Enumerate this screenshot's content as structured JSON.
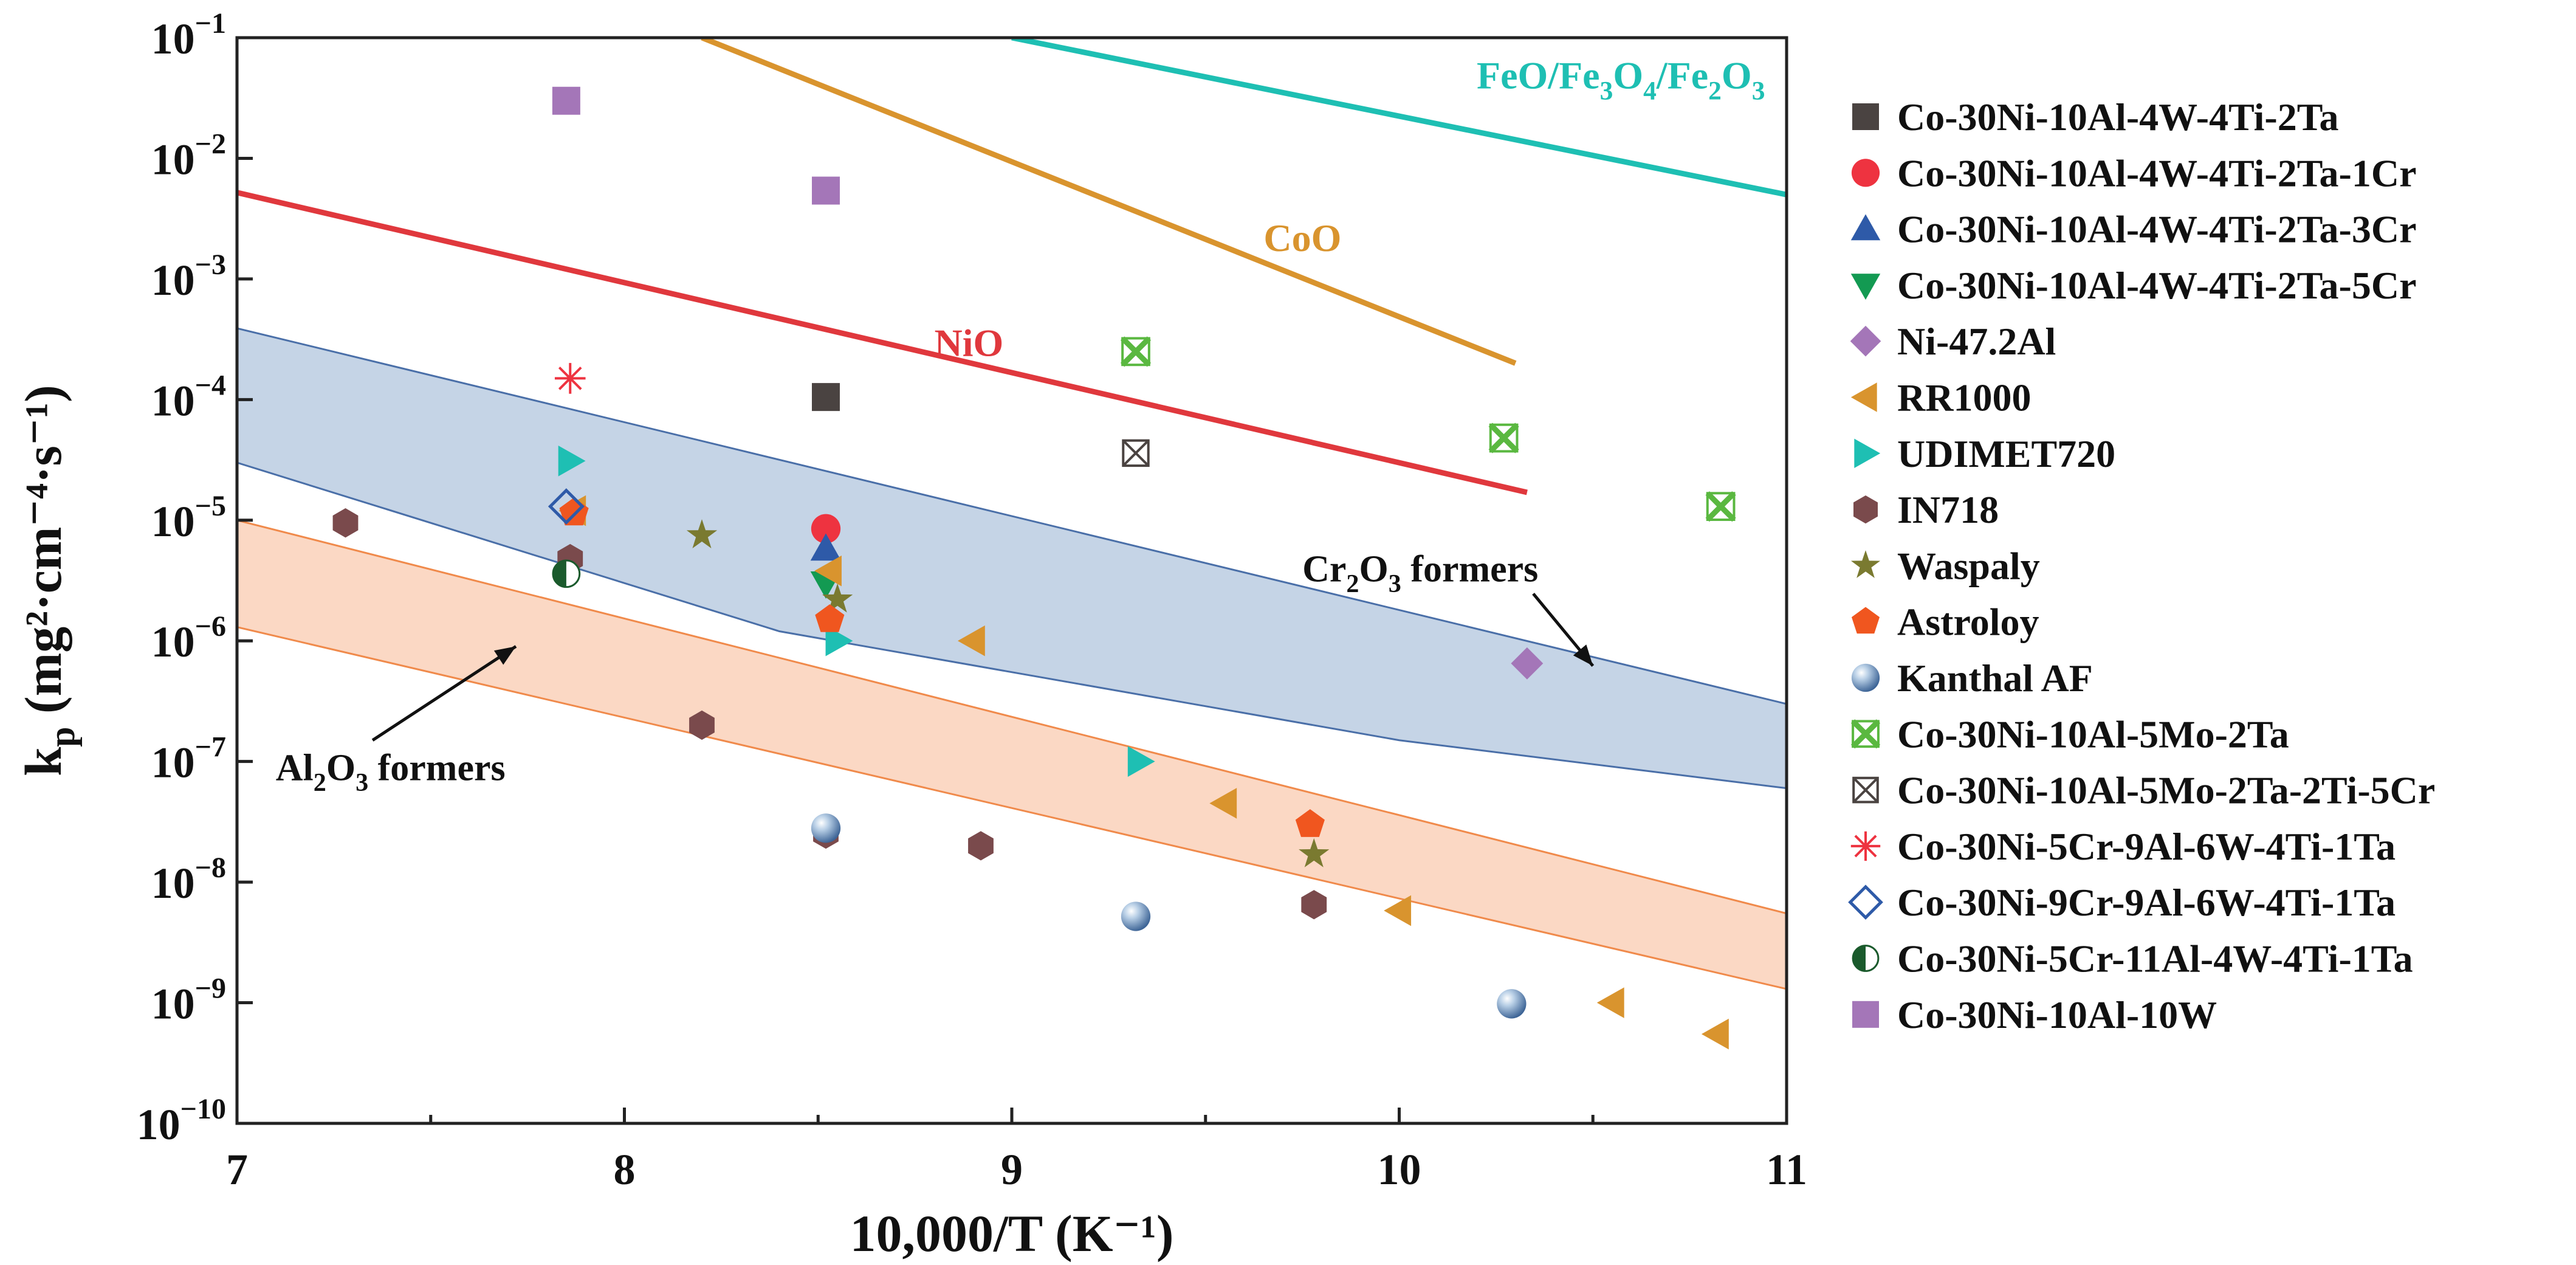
{
  "chart_data": {
    "type": "scatter",
    "title": "",
    "xlabel": "10,000/T (K⁻¹)",
    "ylabel": {
      "main": "k",
      "sub": "p",
      "unit": "(mg²·cm⁻⁴·s⁻¹)"
    },
    "xlim": [
      7,
      11
    ],
    "yscale": "log",
    "ylim": [
      1e-10,
      0.1
    ],
    "xticks": [
      7,
      8,
      9,
      10,
      11
    ],
    "yticks": [
      {
        "value": 0.1,
        "base": "10",
        "exp": "−1"
      },
      {
        "value": 0.01,
        "base": "10",
        "exp": "−2"
      },
      {
        "value": 0.001,
        "base": "10",
        "exp": "−3"
      },
      {
        "value": 0.0001,
        "base": "10",
        "exp": "−4"
      },
      {
        "value": 1e-05,
        "base": "10",
        "exp": "−5"
      },
      {
        "value": 1e-06,
        "base": "10",
        "exp": "−6"
      },
      {
        "value": 1e-07,
        "base": "10",
        "exp": "−7"
      },
      {
        "value": 1e-08,
        "base": "10",
        "exp": "−8"
      },
      {
        "value": 1e-09,
        "base": "10",
        "exp": "−9"
      },
      {
        "value": 1e-10,
        "base": "10",
        "exp": "−10"
      }
    ],
    "bands": [
      {
        "name": "Cr2O3 formers",
        "color": "#c5d4e6",
        "edge": "#4a6fa8",
        "upper": [
          [
            7,
            0.00039
          ],
          [
            11,
            3e-07
          ]
        ],
        "lower": [
          [
            7,
            3e-05
          ],
          [
            8.4,
            1.2e-06
          ],
          [
            10,
            1.5e-07
          ],
          [
            11,
            6e-08
          ]
        ]
      },
      {
        "name": "Al2O3 formers",
        "color": "#fbd8c4",
        "edge": "#f08a4b",
        "upper": [
          [
            7,
            1e-05
          ],
          [
            11,
            5.5e-09
          ]
        ],
        "lower": [
          [
            7,
            1.3e-06
          ],
          [
            11,
            1.3e-09
          ]
        ]
      }
    ],
    "lines": [
      {
        "name": "FeO/Fe3O4/Fe2O3",
        "color": "#1ebfb3",
        "points": [
          [
            9.0,
            0.1
          ],
          [
            11,
            0.005
          ]
        ]
      },
      {
        "name": "CoO",
        "color": "#d9942e",
        "points": [
          [
            8.2,
            0.1
          ],
          [
            10.3,
            0.0002
          ]
        ]
      },
      {
        "name": "NiO",
        "color": "#e0383d",
        "points": [
          [
            7,
            0.0052
          ],
          [
            10.33,
            1.7e-05
          ]
        ]
      }
    ],
    "line_labels": [
      {
        "series": "FeO/Fe3O4/Fe2O3",
        "parts": [
          "FeO/Fe",
          "3",
          "O",
          "4",
          "/Fe",
          "2",
          "O",
          "3"
        ],
        "color": "#1ebfb3",
        "at": [
          10.2,
          0.038
        ]
      },
      {
        "series": "CoO",
        "parts": [
          "CoO"
        ],
        "color": "#d9942e",
        "at": [
          9.65,
          0.0017
        ]
      },
      {
        "series": "NiO",
        "parts": [
          "NiO"
        ],
        "color": "#e0383d",
        "at": [
          8.8,
          0.00023
        ]
      }
    ],
    "band_labels": [
      {
        "series": "Cr2O3 formers",
        "parts": [
          "Cr",
          "2",
          "O",
          "3",
          " formers"
        ],
        "at": [
          9.75,
          3.1e-06
        ],
        "arrow_to": [
          10.5,
          6.2e-07
        ]
      },
      {
        "series": "Al2O3 formers",
        "parts": [
          "Al",
          "2",
          "O",
          "3",
          " formers"
        ],
        "at": [
          7.1,
          7e-08
        ],
        "arrow_from": [
          7.35,
          1.5e-07
        ],
        "arrow_to": [
          7.72,
          9e-07
        ]
      }
    ],
    "series": [
      {
        "name": "Co-30Ni-10Al-4W-4Ti-2Ta",
        "marker": "square",
        "color": "#4a4341",
        "points": [
          [
            8.52,
            0.000105
          ]
        ]
      },
      {
        "name": "Co-30Ni-10Al-4W-4Ti-2Ta-1Cr",
        "marker": "circle",
        "color": "#ee3340",
        "points": [
          [
            8.52,
            8.5e-06
          ]
        ]
      },
      {
        "name": "Co-30Ni-10Al-4W-4Ti-2Ta-3Cr",
        "marker": "triangle-up",
        "color": "#2e5aa8",
        "points": [
          [
            8.52,
            5.8e-06
          ]
        ]
      },
      {
        "name": "Co-30Ni-10Al-4W-4Ti-2Ta-5Cr",
        "marker": "triangle-down",
        "color": "#139a52",
        "points": [
          [
            8.52,
            3e-06
          ]
        ]
      },
      {
        "name": "Ni-47.2Al",
        "marker": "diamond",
        "color": "#a476b8",
        "points": [
          [
            10.33,
            6.5e-07
          ]
        ]
      },
      {
        "name": "RR1000",
        "marker": "triangle-left",
        "color": "#d9942e",
        "points": [
          [
            7.87,
            1.2e-05
          ],
          [
            8.53,
            3.8e-06
          ],
          [
            8.9,
            1e-06
          ],
          [
            9.55,
            4.5e-08
          ],
          [
            10.0,
            5.8e-09
          ],
          [
            10.55,
            1e-09
          ],
          [
            10.82,
            5.5e-10
          ]
        ]
      },
      {
        "name": "UDIMET720",
        "marker": "triangle-right",
        "color": "#1ebfb3",
        "points": [
          [
            7.86,
            3.1e-05
          ],
          [
            8.55,
            1e-06
          ],
          [
            9.33,
            1e-07
          ]
        ]
      },
      {
        "name": "IN718",
        "marker": "hexagon",
        "color": "#7a4a4c",
        "points": [
          [
            7.28,
            9.5e-06
          ],
          [
            7.86,
            4.8e-06
          ],
          [
            8.2,
            2e-07
          ],
          [
            8.52,
            2.5e-08
          ],
          [
            8.92,
            2e-08
          ],
          [
            9.78,
            6.5e-09
          ]
        ]
      },
      {
        "name": "Waspaly",
        "marker": "star",
        "color": "#7a7a30",
        "points": [
          [
            8.2,
            7.5e-06
          ],
          [
            8.55,
            2.2e-06
          ],
          [
            9.78,
            1.7e-08
          ]
        ]
      },
      {
        "name": "Astroloy",
        "marker": "pentagon",
        "color": "#f0561f",
        "points": [
          [
            7.87,
            1.15e-05
          ],
          [
            8.53,
            1.5e-06
          ],
          [
            9.77,
            3e-08
          ]
        ]
      },
      {
        "name": "Kanthal AF",
        "marker": "sphere",
        "color": "#7fa3c8",
        "points": [
          [
            8.52,
            2.8e-08
          ],
          [
            9.32,
            5.2e-09
          ],
          [
            10.29,
            9.8e-10
          ]
        ]
      },
      {
        "name": "Co-30Ni-10Al-5Mo-2Ta",
        "marker": "xbox",
        "color": "#5ab840",
        "points": [
          [
            9.32,
            0.00025
          ],
          [
            10.27,
            4.8e-05
          ],
          [
            10.83,
            1.3e-05
          ]
        ]
      },
      {
        "name": "Co-30Ni-10Al-5Mo-2Ta-2Ti-5Cr",
        "marker": "xsquare",
        "color": "#4a4341",
        "points": [
          [
            9.32,
            3.6e-05
          ]
        ]
      },
      {
        "name": "Co-30Ni-5Cr-9Al-6W-4Ti-1Ta",
        "marker": "asterisk",
        "color": "#ee3340",
        "points": [
          [
            7.86,
            0.00015
          ]
        ]
      },
      {
        "name": "Co-30Ni-9Cr-9Al-6W-4Ti-1Ta",
        "marker": "diamond-open",
        "color": "#2e5aa8",
        "points": [
          [
            7.85,
            1.3e-05
          ]
        ]
      },
      {
        "name": "Co-30Ni-5Cr-11Al-4W-4Ti-1Ta",
        "marker": "halfcircle",
        "color": "#1a5a2c",
        "points": [
          [
            7.85,
            3.6e-06
          ]
        ]
      },
      {
        "name": "Co-30Ni-10Al-10W",
        "marker": "square",
        "color": "#a476b8",
        "points": [
          [
            7.85,
            0.03
          ],
          [
            8.52,
            0.0054
          ]
        ]
      }
    ],
    "legend": "right"
  }
}
